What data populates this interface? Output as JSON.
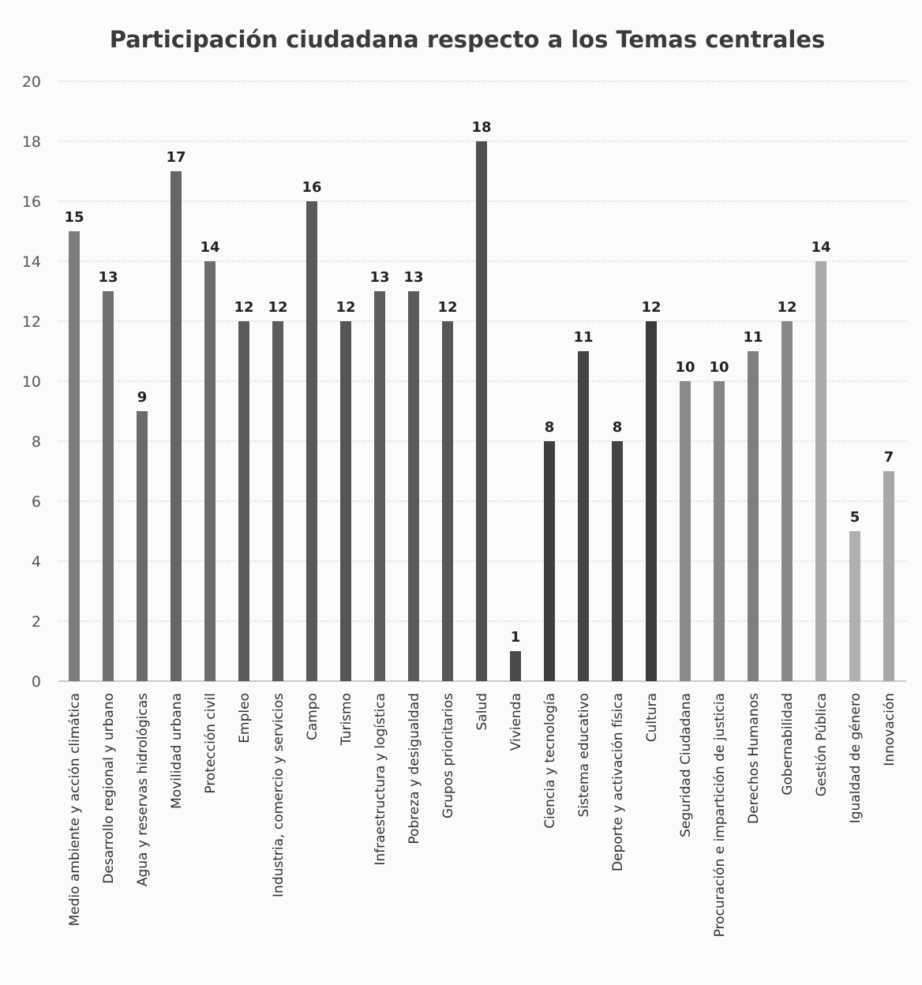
{
  "chart_data": {
    "type": "bar",
    "title": "Participación  ciudadana respecto a los Temas centrales",
    "xlabel": "",
    "ylabel": "",
    "ylim": [
      0,
      20
    ],
    "yticks": [
      0,
      2,
      4,
      6,
      8,
      10,
      12,
      14,
      16,
      18,
      20
    ],
    "grid": true,
    "legend": "none",
    "categories": [
      "Medio ambiente y acción climática",
      "Desarrollo regional y urbano",
      "Agua y reservas hidrológicas",
      "Movilidad urbana",
      "Protección civil",
      "Empleo",
      "Industria, comercio y servicios",
      "Campo",
      "Turismo",
      "Infraestructura y logística",
      "Pobreza y desigualdad",
      "Grupos prioritarios",
      "Salud",
      "Vivienda",
      "Ciencia y tecnología",
      "Sistema educativo",
      "Deporte y activación física",
      "Cultura",
      "Seguridad Ciudadana",
      "Procuración e impartición de justicia",
      "Derechos Humanos",
      "Gobernabilidad",
      "Gestión Pública",
      "Igualdad de género",
      "Innovación"
    ],
    "values": [
      15,
      13,
      9,
      17,
      14,
      12,
      12,
      16,
      12,
      13,
      13,
      12,
      18,
      1,
      8,
      11,
      8,
      12,
      10,
      10,
      11,
      12,
      14,
      5,
      7
    ],
    "colors": [
      "#7d7d7d",
      "#707070",
      "#6a6a6a",
      "#666666",
      "#6c6c6c",
      "#5a5a5a",
      "#5c5c5c",
      "#595959",
      "#555555",
      "#5e5e5e",
      "#5b5b5b",
      "#575757",
      "#505050",
      "#4a4a4a",
      "#3f3f3f",
      "#444444",
      "#434343",
      "#3c3c3c",
      "#8a8a8a",
      "#858585",
      "#7f7f7f",
      "#888888",
      "#aaaaaa",
      "#b0b0b0",
      "#a8a8a8"
    ]
  }
}
